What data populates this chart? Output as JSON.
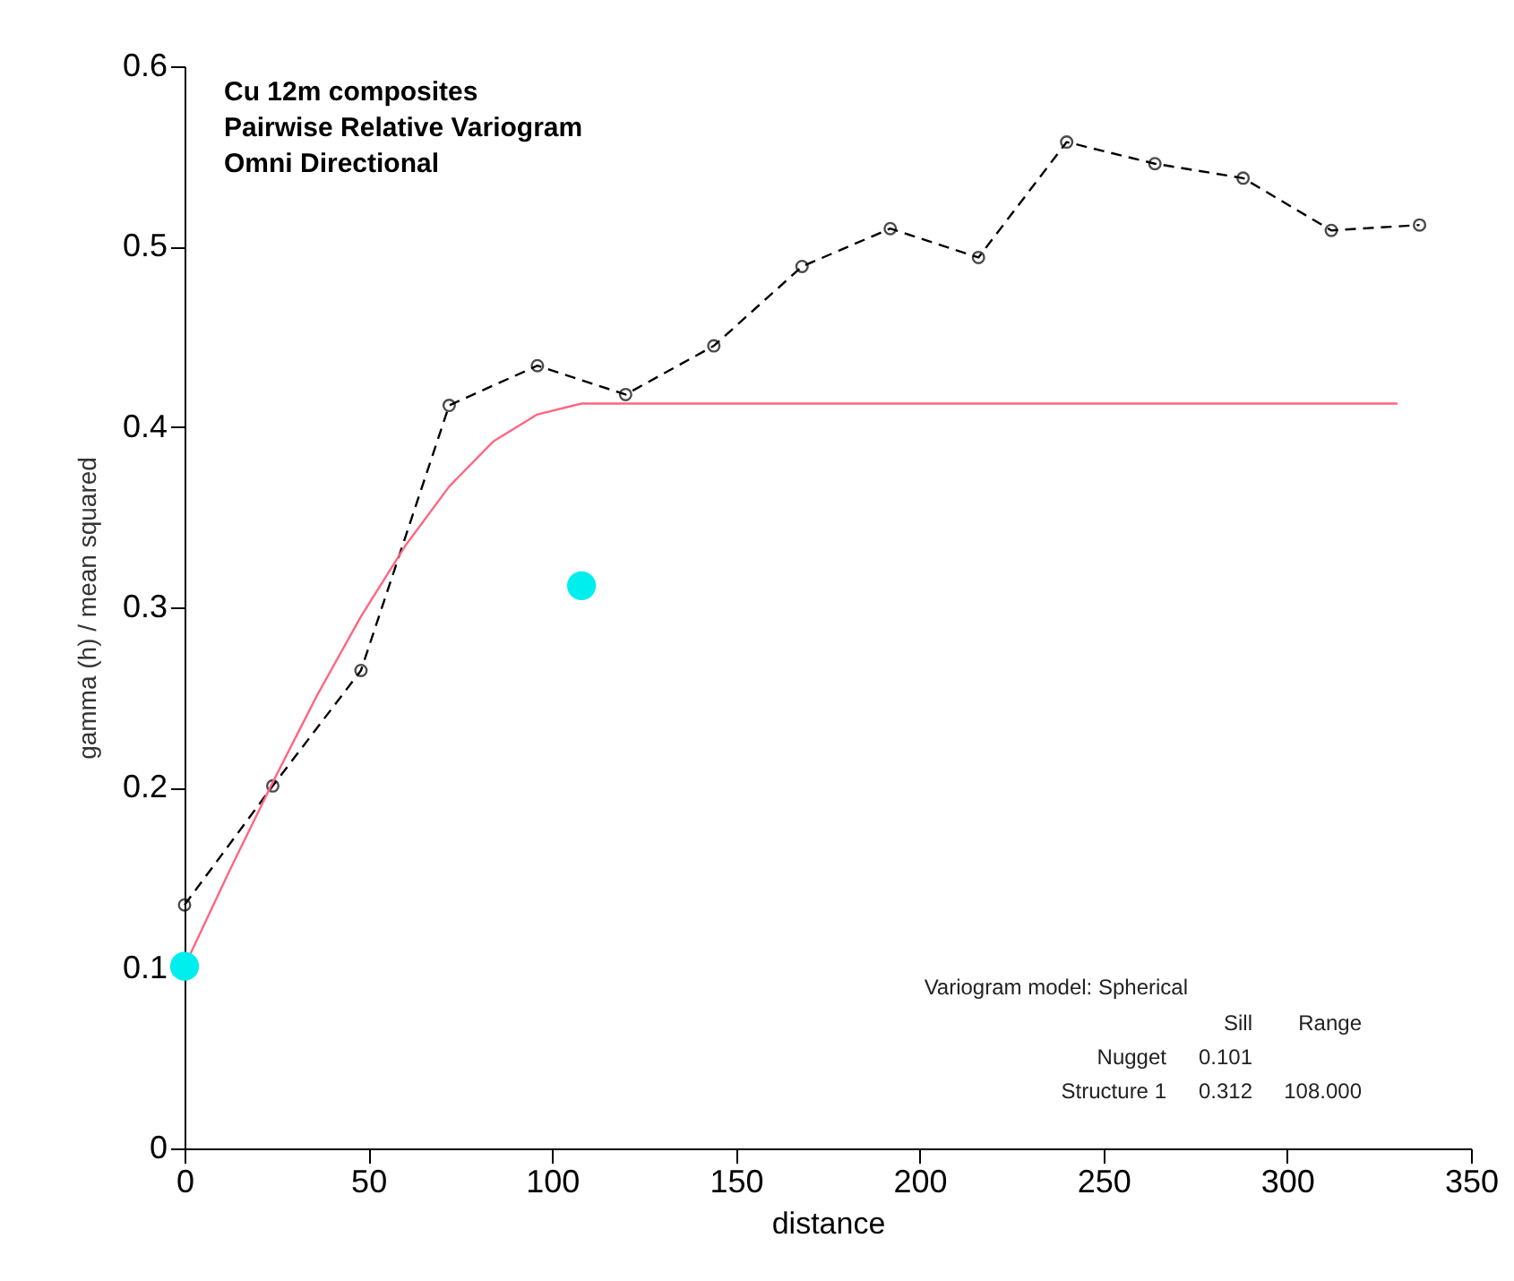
{
  "chart_data": {
    "type": "line",
    "title": "Cu 12m composites\nPairwise Relative Variogram\nOmni Directional",
    "xlabel": "distance",
    "ylabel": "gamma (h) / mean squared",
    "xlim": [
      0,
      350
    ],
    "xticks": [
      0,
      50,
      100,
      150,
      200,
      250,
      300,
      350
    ],
    "ylim": [
      0,
      0.6
    ],
    "yticks": [
      0,
      0.1,
      0.2,
      0.3,
      0.4,
      0.5,
      0.6
    ],
    "grid": false,
    "series": [
      {
        "color": "#000000",
        "marker": "circle",
        "line_style": "dashed",
        "x": [
          0,
          24,
          48,
          72,
          96,
          120,
          144,
          168,
          192,
          216,
          240,
          264,
          288,
          312,
          336
        ],
        "values": [
          0.135,
          0.201,
          0.265,
          0.412,
          0.434,
          0.418,
          0.445,
          0.489,
          0.51,
          0.494,
          0.558,
          0.546,
          0.538,
          0.509,
          0.512
        ]
      },
      {
        "color": "#ff6680",
        "marker": "none",
        "line_style": "solid",
        "x": [
          0,
          12,
          24,
          36,
          48,
          60,
          72,
          84,
          96,
          108,
          330
        ],
        "values": [
          0.101,
          0.153,
          0.203,
          0.251,
          0.295,
          0.334,
          0.367,
          0.392,
          0.407,
          0.413,
          0.413
        ]
      },
      {
        "type": "scatter",
        "color": "#00eeee",
        "marker": "circle",
        "x": [
          0,
          108
        ],
        "values": [
          0.101,
          0.312
        ]
      }
    ],
    "annotations": [
      "Variogram model: Spherical",
      "Sill",
      "Range",
      "Nugget",
      "0.101",
      "Structure 1",
      "0.312",
      "108.000"
    ]
  }
}
